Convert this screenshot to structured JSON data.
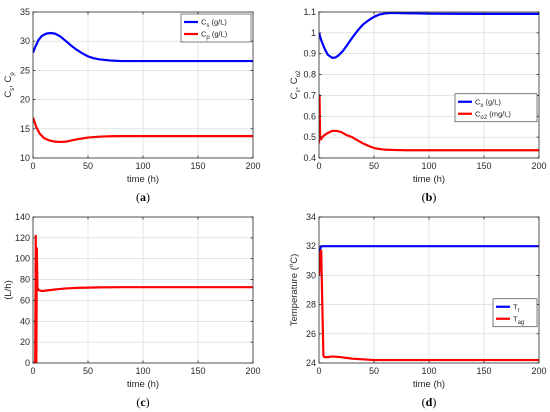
{
  "colors": {
    "blue": "#0000ff",
    "red": "#ff0000",
    "grid": "#d4d4d4",
    "axis": "#262626"
  },
  "chart_data": [
    {
      "id": "a",
      "type": "line",
      "caption": "a",
      "xlabel": "time (h)",
      "ylabel": {
        "base": [
          "C",
          ", C"
        ],
        "subs": [
          "s",
          "p"
        ]
      },
      "xlim": [
        0,
        200
      ],
      "ylim": [
        10,
        35
      ],
      "xticks": [
        0,
        50,
        100,
        150,
        200
      ],
      "yticks": [
        10,
        15,
        20,
        25,
        30,
        35
      ],
      "grid": true,
      "legend": {
        "position": "top-right",
        "entries": [
          {
            "base": "C",
            "sub": "s",
            "suffix": " (g/L)",
            "color": "#0000ff"
          },
          {
            "base": "C",
            "sub": "p",
            "suffix": " (g/L)",
            "color": "#ff0000"
          }
        ]
      },
      "series": [
        {
          "name": "Cs (g/L)",
          "color": "#0000ff",
          "x": [
            0,
            2,
            5,
            8,
            12,
            16,
            20,
            25,
            30,
            35,
            40,
            45,
            50,
            55,
            60,
            70,
            80,
            90,
            100,
            120,
            150,
            200
          ],
          "y": [
            28.0,
            29.0,
            30.2,
            30.9,
            31.3,
            31.4,
            31.3,
            30.8,
            30.0,
            29.2,
            28.5,
            27.9,
            27.4,
            27.1,
            26.9,
            26.7,
            26.6,
            26.6,
            26.6,
            26.6,
            26.6,
            26.6
          ]
        },
        {
          "name": "Cp (g/L)",
          "color": "#ff0000",
          "x": [
            0,
            1,
            3,
            6,
            10,
            15,
            20,
            25,
            30,
            35,
            40,
            50,
            60,
            70,
            80,
            100,
            150,
            200
          ],
          "y": [
            16.9,
            16.4,
            15.3,
            14.2,
            13.4,
            13.0,
            12.8,
            12.75,
            12.8,
            13.0,
            13.2,
            13.5,
            13.65,
            13.72,
            13.75,
            13.75,
            13.75,
            13.75
          ]
        }
      ]
    },
    {
      "id": "b",
      "type": "line",
      "caption": "b",
      "xlabel": "time (h)",
      "ylabel": {
        "base": [
          "C",
          ", C"
        ],
        "subs": [
          "x",
          "o2"
        ]
      },
      "xlim": [
        0,
        200
      ],
      "ylim": [
        0.4,
        1.1
      ],
      "xticks": [
        0,
        50,
        100,
        150,
        200
      ],
      "yticks": [
        0.4,
        0.5,
        0.6,
        0.7,
        0.8,
        0.9,
        1.0,
        1.1
      ],
      "ytick_labels": [
        "0.4",
        "0.5",
        "0.6",
        "0.7",
        "0.8",
        "0.9",
        "1",
        "1.1"
      ],
      "grid": true,
      "legend": {
        "position": "middle-right",
        "entries": [
          {
            "base": "C",
            "sub": "x",
            "suffix": " (g/L)",
            "color": "#0000ff"
          },
          {
            "base": "C",
            "sub": "o2",
            "suffix": " (mg/L)",
            "color": "#ff0000"
          }
        ]
      },
      "series": [
        {
          "name": "Cx (g/L)",
          "color": "#0000ff",
          "x": [
            0,
            2,
            5,
            8,
            12,
            15,
            18,
            22,
            26,
            30,
            35,
            40,
            45,
            50,
            55,
            60,
            65,
            70,
            80,
            90,
            100,
            150,
            200
          ],
          "y": [
            1.0,
            0.965,
            0.925,
            0.895,
            0.88,
            0.882,
            0.893,
            0.915,
            0.945,
            0.975,
            1.01,
            1.04,
            1.06,
            1.077,
            1.088,
            1.093,
            1.095,
            1.095,
            1.094,
            1.093,
            1.092,
            1.091,
            1.091
          ]
        },
        {
          "name": "Co2 (mg/L)",
          "color": "#ff0000",
          "x": [
            0,
            0.5,
            1,
            2,
            3,
            5,
            8,
            12,
            16,
            20,
            25,
            30,
            35,
            40,
            45,
            50,
            55,
            60,
            70,
            80,
            100,
            150,
            200
          ],
          "y": [
            0.47,
            0.7,
            0.49,
            0.49,
            0.5,
            0.51,
            0.52,
            0.53,
            0.53,
            0.525,
            0.51,
            0.5,
            0.485,
            0.47,
            0.458,
            0.448,
            0.443,
            0.44,
            0.438,
            0.437,
            0.437,
            0.437,
            0.437
          ]
        }
      ]
    },
    {
      "id": "c",
      "type": "line",
      "caption": "c",
      "xlabel": "time (h)",
      "ylabel": {
        "base": [
          "(L/h)"
        ],
        "subs": []
      },
      "xlim": [
        0,
        200
      ],
      "ylim": [
        0,
        140
      ],
      "xticks": [
        0,
        50,
        100,
        150,
        200
      ],
      "yticks": [
        0,
        20,
        40,
        60,
        80,
        100,
        120,
        140
      ],
      "grid": true,
      "legend": null,
      "series": [
        {
          "name": "",
          "color": "#ff0000",
          "x": [
            0,
            2,
            2.5,
            3,
            3.5,
            4,
            5,
            8,
            12,
            16,
            20,
            25,
            30,
            40,
            50,
            60,
            80,
            100,
            150,
            200
          ],
          "y": [
            0,
            0,
            122,
            0,
            110,
            72,
            70,
            69,
            69.5,
            70,
            70.5,
            71,
            71.5,
            72,
            72.3,
            72.5,
            72.7,
            72.7,
            72.7,
            72.7
          ]
        }
      ]
    },
    {
      "id": "d",
      "type": "line",
      "caption": "d",
      "xlabel": "time (h)",
      "ylabel": {
        "base": [
          "Temperature (",
          "C)"
        ],
        "subs": [],
        "sup": "o"
      },
      "xlim": [
        0,
        200
      ],
      "ylim": [
        24,
        34
      ],
      "xticks": [
        0,
        50,
        100,
        150,
        200
      ],
      "yticks": [
        24,
        26,
        28,
        30,
        32,
        34
      ],
      "grid": true,
      "legend": {
        "position": "middle-right",
        "entries": [
          {
            "base": "T",
            "sub": "r",
            "suffix": "",
            "color": "#0000ff"
          },
          {
            "base": "T",
            "sub": "ag",
            "suffix": "",
            "color": "#ff0000"
          }
        ]
      },
      "series": [
        {
          "name": "Tr",
          "color": "#0000ff",
          "x": [
            0,
            0.5,
            1,
            2,
            3,
            200
          ],
          "y": [
            30,
            31.2,
            31.8,
            32,
            32,
            32
          ]
        },
        {
          "name": "Tag",
          "color": "#ff0000",
          "x": [
            0,
            1,
            2,
            3,
            4,
            5,
            8,
            12,
            20,
            30,
            50,
            70,
            100,
            150,
            200
          ],
          "y": [
            30,
            31.5,
            31.7,
            28,
            24.5,
            24.4,
            24.4,
            24.45,
            24.4,
            24.3,
            24.2,
            24.2,
            24.2,
            24.2,
            24.2
          ]
        }
      ]
    }
  ]
}
